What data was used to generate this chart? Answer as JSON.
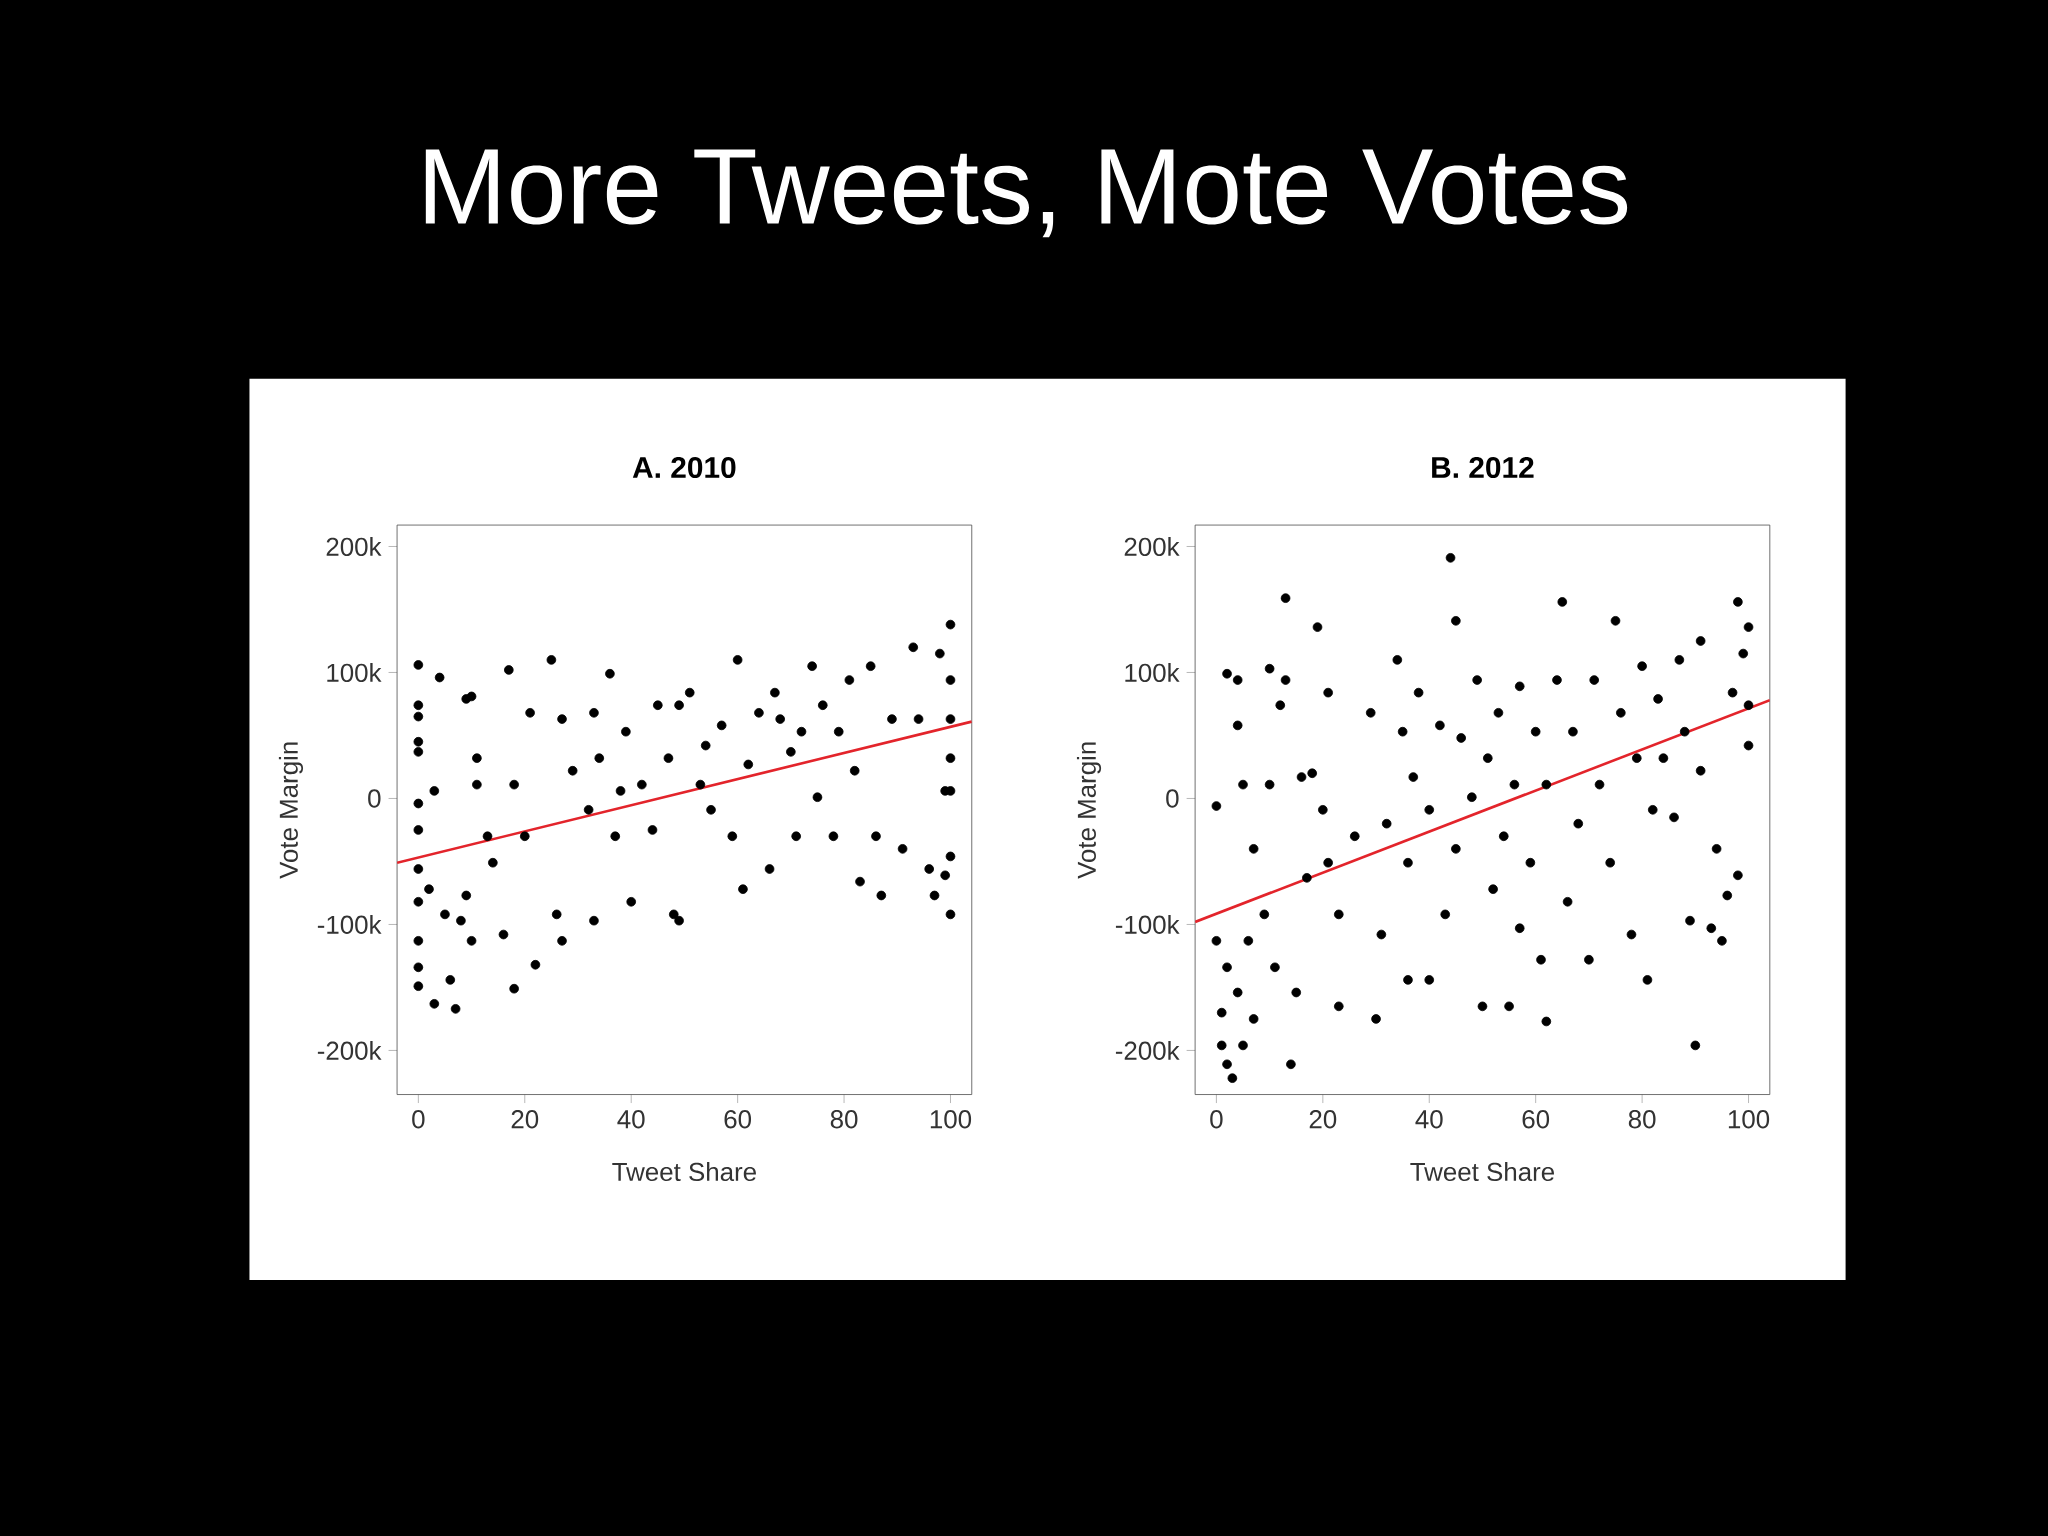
{
  "chart_data": [
    {
      "type": "scatter",
      "title": "More Tweets, Mote Votes",
      "subtitle": "A. 2010",
      "xlabel": "Tweet Share",
      "ylabel": "Vote Margin",
      "xlim": [
        -4,
        104
      ],
      "ylim": [
        -235000,
        217000
      ],
      "xticks": [
        0,
        20,
        40,
        60,
        80,
        100
      ],
      "yticks": [
        {
          "value": -200000,
          "label": "-200k"
        },
        {
          "value": -100000,
          "label": "-100k"
        },
        {
          "value": 0,
          "label": "0"
        },
        {
          "value": 100000,
          "label": "100k"
        },
        {
          "value": 200000,
          "label": "200k"
        }
      ],
      "marker": "circle",
      "grid": false,
      "series": [
        {
          "color": "#000000",
          "x": [
            0,
            0,
            0,
            0,
            0,
            0,
            0,
            0,
            0,
            0,
            0,
            0,
            4,
            3,
            2,
            3,
            5,
            6,
            7,
            8,
            9,
            10,
            9,
            10,
            11,
            11,
            13,
            14,
            17,
            16,
            18,
            18,
            20,
            21,
            22,
            25,
            26,
            27,
            27,
            29,
            32,
            33,
            33,
            34,
            36,
            37,
            38,
            39,
            40,
            42,
            44,
            45,
            47,
            48,
            49,
            49,
            51,
            53,
            54,
            55,
            57,
            59,
            60,
            61,
            62,
            64,
            66,
            67,
            68,
            70,
            71,
            72,
            74,
            75,
            76,
            78,
            79,
            81,
            82,
            83,
            85,
            86,
            87,
            89,
            91,
            93,
            94,
            96,
            97,
            98,
            99,
            100,
            100,
            100,
            100,
            100,
            100,
            100,
            99
          ],
          "values": [
            106000,
            74000,
            65000,
            45000,
            37000,
            -4000,
            -25000,
            -56000,
            -82000,
            -113000,
            -134000,
            -149000,
            96000,
            6000,
            -72000,
            -163000,
            -92000,
            -144000,
            -167000,
            -97000,
            79000,
            81000,
            -77000,
            -113000,
            32000,
            11000,
            -30000,
            -51000,
            102000,
            -108000,
            -151000,
            11000,
            -30000,
            68000,
            -132000,
            110000,
            -92000,
            63000,
            -113000,
            22000,
            -9000,
            68000,
            -97000,
            32000,
            99000,
            -30000,
            6000,
            53000,
            -82000,
            11000,
            -25000,
            74000,
            32000,
            -92000,
            74000,
            -97000,
            84000,
            11000,
            42000,
            -9000,
            58000,
            -30000,
            110000,
            -72000,
            27000,
            68000,
            -56000,
            84000,
            63000,
            37000,
            -30000,
            53000,
            105000,
            1000,
            74000,
            -30000,
            53000,
            94000,
            22000,
            -66000,
            105000,
            -30000,
            -77000,
            63000,
            -40000,
            120000,
            63000,
            -56000,
            -77000,
            115000,
            6000,
            -92000,
            138000,
            94000,
            63000,
            32000,
            -46000,
            6000,
            -61000
          ]
        },
        {
          "type": "line",
          "color": "#e3242b",
          "marker": "none",
          "x": [
            -4,
            104
          ],
          "values": [
            -51000,
            61000
          ]
        }
      ]
    },
    {
      "type": "scatter",
      "subtitle": "B. 2012",
      "xlabel": "Tweet Share",
      "ylabel": "Vote Margin",
      "xlim": [
        -4,
        104
      ],
      "ylim": [
        -235000,
        217000
      ],
      "xticks": [
        0,
        20,
        40,
        60,
        80,
        100
      ],
      "yticks": [
        {
          "value": -200000,
          "label": "-200k"
        },
        {
          "value": -100000,
          "label": "-100k"
        },
        {
          "value": 0,
          "label": "0"
        },
        {
          "value": 100000,
          "label": "100k"
        },
        {
          "value": 200000,
          "label": "200k"
        }
      ],
      "marker": "circle",
      "grid": false,
      "series": [
        {
          "color": "#000000",
          "x": [
            0,
            0,
            1,
            1,
            2,
            2,
            2,
            3,
            4,
            4,
            4,
            5,
            5,
            6,
            7,
            7,
            9,
            10,
            10,
            11,
            12,
            13,
            13,
            14,
            15,
            16,
            17,
            18,
            19,
            20,
            21,
            21,
            23,
            23,
            26,
            29,
            30,
            31,
            32,
            34,
            35,
            36,
            36,
            37,
            38,
            40,
            40,
            42,
            43,
            44,
            45,
            45,
            46,
            48,
            49,
            50,
            51,
            52,
            53,
            54,
            55,
            56,
            57,
            57,
            59,
            60,
            61,
            62,
            62,
            64,
            65,
            66,
            67,
            68,
            70,
            71,
            72,
            74,
            75,
            76,
            78,
            79,
            80,
            81,
            82,
            83,
            84,
            86,
            87,
            88,
            89,
            90,
            91,
            91,
            93,
            94,
            95,
            96,
            97,
            98,
            98,
            99,
            100,
            100,
            100
          ],
          "values": [
            -6000,
            -113000,
            -170000,
            -196000,
            -211000,
            -134000,
            99000,
            -222000,
            -154000,
            58000,
            94000,
            -196000,
            11000,
            -113000,
            -40000,
            -175000,
            -92000,
            11000,
            103000,
            -134000,
            74000,
            94000,
            159000,
            -211000,
            -154000,
            17000,
            -63000,
            20000,
            136000,
            -9000,
            84000,
            -51000,
            -165000,
            -92000,
            -30000,
            68000,
            -175000,
            -108000,
            -20000,
            110000,
            53000,
            -51000,
            -144000,
            17000,
            84000,
            -144000,
            -9000,
            58000,
            -92000,
            191000,
            -40000,
            141000,
            48000,
            1000,
            94000,
            -165000,
            32000,
            -72000,
            68000,
            -30000,
            -165000,
            11000,
            -103000,
            89000,
            -51000,
            53000,
            -128000,
            -177000,
            11000,
            94000,
            156000,
            -82000,
            53000,
            -20000,
            -128000,
            94000,
            11000,
            -51000,
            141000,
            68000,
            -108000,
            32000,
            105000,
            -144000,
            -9000,
            79000,
            32000,
            -15000,
            110000,
            53000,
            -97000,
            -196000,
            125000,
            22000,
            -103000,
            -40000,
            -113000,
            -77000,
            84000,
            -61000,
            156000,
            115000,
            42000,
            136000,
            74000
          ]
        },
        {
          "type": "line",
          "color": "#e3242b",
          "marker": "none",
          "x": [
            -4,
            104
          ],
          "values": [
            -98000,
            78000
          ]
        }
      ]
    }
  ]
}
